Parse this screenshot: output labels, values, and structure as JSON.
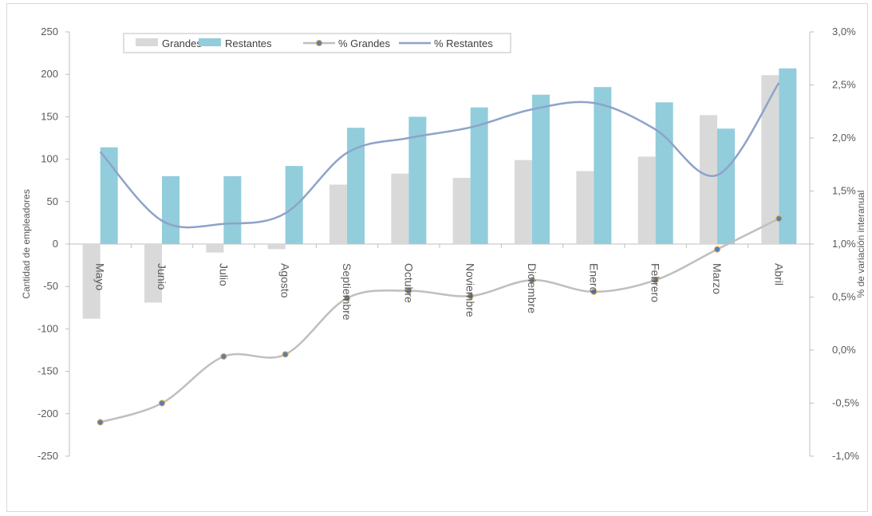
{
  "chart_data": {
    "type": "bar",
    "categories": [
      "Mayo",
      "Junio",
      "Julio",
      "Agosto",
      "Septiembre",
      "Octubre",
      "Noviembre",
      "Diciembre",
      "Enero",
      "Febrero",
      "Marzo",
      "Abril"
    ],
    "series": [
      {
        "name": "Grandes",
        "kind": "bar",
        "axis": "left",
        "color": "#d9d9d9",
        "values": [
          -88,
          -69,
          -10,
          -6,
          70,
          83,
          78,
          99,
          86,
          103,
          152,
          199
        ]
      },
      {
        "name": "Restantes",
        "kind": "bar",
        "axis": "left",
        "color": "#92cddc",
        "values": [
          114,
          80,
          80,
          92,
          137,
          150,
          161,
          176,
          185,
          167,
          136,
          207
        ]
      },
      {
        "name": "% Grandes",
        "kind": "line",
        "axis": "right",
        "color": "#bfbfbf",
        "marker_color": "#4f81bd",
        "values": [
          -0.68,
          -0.5,
          -0.06,
          -0.04,
          0.49,
          0.56,
          0.51,
          0.66,
          0.55,
          0.66,
          0.95,
          1.24
        ]
      },
      {
        "name": "% Restantes",
        "kind": "line",
        "axis": "right",
        "color": "#8ea3c9",
        "values": [
          1.87,
          1.22,
          1.19,
          1.29,
          1.86,
          2.0,
          2.1,
          2.27,
          2.33,
          2.08,
          1.65,
          2.52
        ]
      }
    ],
    "ylabel": "Cantidad de empleadores",
    "y2label": "% de variación interanual",
    "ylim": [
      -250,
      250
    ],
    "y_ticks": [
      "250",
      "200",
      "150",
      "100",
      "50",
      "0",
      "-50",
      "-100",
      "-150",
      "-200",
      "-250"
    ],
    "y2lim": [
      -1.0,
      3.0
    ],
    "y2_ticks": [
      "3,0%",
      "2,5%",
      "2,0%",
      "1,5%",
      "1,0%",
      "0,5%",
      "0,0%",
      "-0,5%",
      "-1,0%"
    ],
    "legend_position": "top-left",
    "grid": false
  }
}
